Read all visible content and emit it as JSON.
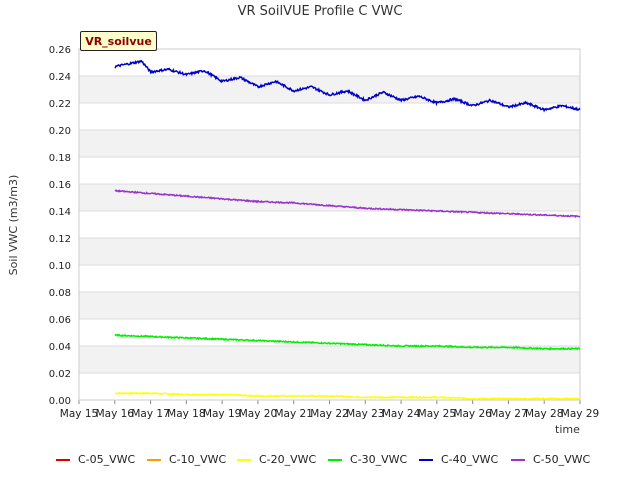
{
  "chart_data": {
    "type": "line",
    "title": "VR SoilVUE Profile C VWC",
    "badge": "VR_soilvue",
    "xlabel": "time",
    "ylabel": "Soil VWC (m3/m3)",
    "x_ticks": [
      "May 15",
      "May 16",
      "May 17",
      "May 18",
      "May 19",
      "May 20",
      "May 21",
      "May 22",
      "May 23",
      "May 24",
      "May 25",
      "May 26",
      "May 27",
      "May 28",
      "May 29"
    ],
    "y_ticks": [
      "0.00",
      "0.02",
      "0.04",
      "0.06",
      "0.08",
      "0.10",
      "0.12",
      "0.14",
      "0.16",
      "0.18",
      "0.20",
      "0.22",
      "0.24",
      "0.26"
    ],
    "ylim": [
      0,
      0.26
    ],
    "xlim": [
      "2024-05-15",
      "2024-05-29"
    ],
    "grid": true,
    "legend_position": "bottom",
    "series": [
      {
        "name": "C-05_VWC",
        "color": "#dd0000",
        "x": [],
        "values": []
      },
      {
        "name": "C-10_VWC",
        "color": "#ff9900",
        "x": [],
        "values": []
      },
      {
        "name": "C-20_VWC",
        "color": "#ffff00",
        "x": [
          "2024-05-16",
          "2024-05-17",
          "2024-05-18",
          "2024-05-19",
          "2024-05-20",
          "2024-05-21",
          "2024-05-22",
          "2024-05-23",
          "2024-05-24",
          "2024-05-25",
          "2024-05-26",
          "2024-05-27",
          "2024-05-28",
          "2024-05-29"
        ],
        "values": [
          0.005,
          0.005,
          0.004,
          0.004,
          0.003,
          0.003,
          0.003,
          0.002,
          0.002,
          0.002,
          0.001,
          0.001,
          0.001,
          0.001
        ]
      },
      {
        "name": "C-30_VWC",
        "color": "#00ee00",
        "x": [
          "2024-05-16",
          "2024-05-17",
          "2024-05-18",
          "2024-05-19",
          "2024-05-20",
          "2024-05-21",
          "2024-05-22",
          "2024-05-23",
          "2024-05-24",
          "2024-05-25",
          "2024-05-26",
          "2024-05-27",
          "2024-05-28",
          "2024-05-29"
        ],
        "values": [
          0.048,
          0.047,
          0.046,
          0.045,
          0.044,
          0.043,
          0.042,
          0.041,
          0.04,
          0.04,
          0.039,
          0.039,
          0.038,
          0.038
        ]
      },
      {
        "name": "C-40_VWC",
        "color": "#0000cc",
        "x": [
          "2024-05-16",
          "2024-05-16 18:00",
          "2024-05-17",
          "2024-05-17 12:00",
          "2024-05-18",
          "2024-05-18 12:00",
          "2024-05-19",
          "2024-05-19 12:00",
          "2024-05-20",
          "2024-05-20 12:00",
          "2024-05-21",
          "2024-05-21 12:00",
          "2024-05-22",
          "2024-05-22 12:00",
          "2024-05-23",
          "2024-05-23 12:00",
          "2024-05-24",
          "2024-05-24 12:00",
          "2024-05-25",
          "2024-05-25 12:00",
          "2024-05-26",
          "2024-05-26 12:00",
          "2024-05-27",
          "2024-05-27 12:00",
          "2024-05-28",
          "2024-05-28 12:00",
          "2024-05-29"
        ],
        "values": [
          0.247,
          0.251,
          0.243,
          0.245,
          0.241,
          0.244,
          0.236,
          0.239,
          0.232,
          0.236,
          0.229,
          0.232,
          0.226,
          0.229,
          0.222,
          0.228,
          0.222,
          0.225,
          0.22,
          0.223,
          0.218,
          0.222,
          0.217,
          0.22,
          0.215,
          0.218,
          0.215
        ]
      },
      {
        "name": "C-50_VWC",
        "color": "#9933cc",
        "x": [
          "2024-05-16",
          "2024-05-17",
          "2024-05-18",
          "2024-05-19",
          "2024-05-20",
          "2024-05-21",
          "2024-05-22",
          "2024-05-23",
          "2024-05-24",
          "2024-05-25",
          "2024-05-26",
          "2024-05-27",
          "2024-05-28",
          "2024-05-29"
        ],
        "values": [
          0.155,
          0.153,
          0.151,
          0.149,
          0.147,
          0.146,
          0.144,
          0.142,
          0.141,
          0.14,
          0.139,
          0.138,
          0.137,
          0.136
        ]
      }
    ]
  }
}
